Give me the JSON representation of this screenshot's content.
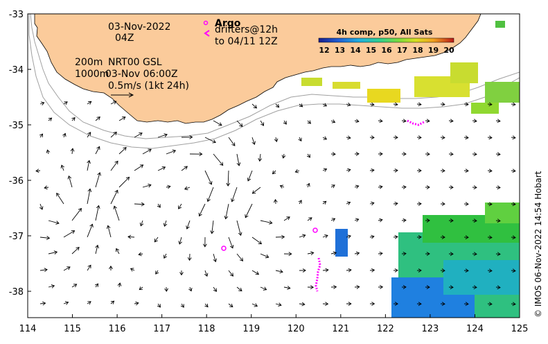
{
  "map": {
    "date_label": "03-Nov-2022",
    "time_label": "04Z",
    "depth_200": "200m",
    "depth_1000": "1000m",
    "product_label": "NRT00 GSL",
    "product_time": "03-Nov 06:00Z",
    "scale_label": "0.5m/s (1kt 24h)",
    "argo_label": "Argo",
    "drifters_label": "drifters@12h",
    "drifters_to_label": "to 04/11 12Z",
    "credit": "© IMOS 06-Nov-2022 14:54 Hobart",
    "colorbar": {
      "title": "4h comp, p50, All Sats",
      "ticks": [
        "12",
        "13",
        "14",
        "15",
        "16",
        "17",
        "18",
        "19",
        "20"
      ]
    },
    "lon_ticks": [
      "114",
      "115",
      "116",
      "117",
      "118",
      "119",
      "120",
      "121",
      "122",
      "123",
      "124",
      "125"
    ],
    "lat_ticks": [
      "-33",
      "-34",
      "-35",
      "-36",
      "-37",
      "-38"
    ],
    "colors": {
      "land": "#fbcb9b",
      "argo": "#ff00ff",
      "isobath": "#a0a0a0",
      "arrow": "#000000"
    }
  }
}
